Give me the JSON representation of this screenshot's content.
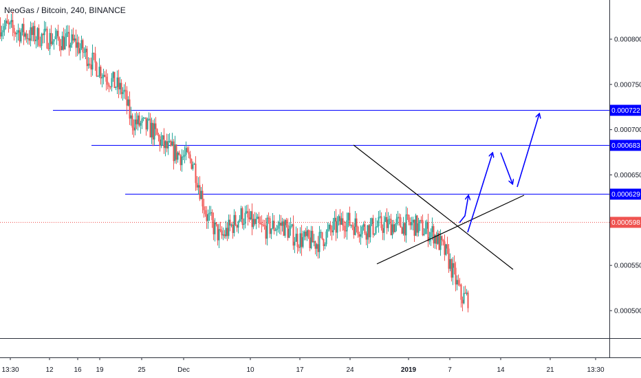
{
  "title": "NeoGas / Bitcoin, 240, BINANCE",
  "colors": {
    "up": "#26a69a",
    "down": "#ef5350",
    "level_line": "#0000ff",
    "tag_bg": "#0000ff",
    "current_price": "#ef5350",
    "trendline": "#000000",
    "arrow": "#0000ff"
  },
  "chart_data": {
    "type": "candlestick",
    "ylim": [
      0.00047,
      0.00083
    ],
    "y_ticks": [
      "0.000800",
      "0.000750",
      "0.000700",
      "0.000650",
      "0.000600",
      "0.000550",
      "0.000500"
    ],
    "x_ticks": [
      "13:30",
      "12",
      "16",
      "19",
      "25",
      "Dec",
      "10",
      "17",
      "24",
      "2019",
      "7",
      "14",
      "21",
      "13:30"
    ],
    "levels": [
      {
        "label": "0.000722",
        "value": 0.000722
      },
      {
        "label": "0.000683",
        "value": 0.000683
      },
      {
        "label": "0.000629",
        "value": 0.000629
      }
    ],
    "current_price": {
      "label": "0.000598",
      "value": 0.000598
    },
    "candle_count": 340,
    "price_anchors": [
      [
        0,
        0.000815
      ],
      [
        20,
        0.000805
      ],
      [
        40,
        0.0008
      ],
      [
        55,
        0.000795
      ],
      [
        70,
        0.00077
      ],
      [
        90,
        0.00074
      ],
      [
        95,
        0.00071
      ],
      [
        110,
        0.0007
      ],
      [
        120,
        0.00068
      ],
      [
        140,
        0.000665
      ],
      [
        150,
        0.000605
      ],
      [
        160,
        0.00058
      ],
      [
        175,
        0.000605
      ],
      [
        190,
        0.00059
      ],
      [
        205,
        0.000595
      ],
      [
        215,
        0.00058
      ],
      [
        230,
        0.000575
      ],
      [
        250,
        0.0006
      ],
      [
        265,
        0.00059
      ],
      [
        280,
        0.000595
      ],
      [
        300,
        0.000595
      ],
      [
        315,
        0.000585
      ],
      [
        325,
        0.00056
      ],
      [
        335,
        0.000515
      ],
      [
        355,
        0.000512
      ],
      [
        375,
        0.000505
      ],
      [
        395,
        0.000502
      ],
      [
        415,
        0.000505
      ],
      [
        440,
        0.00052
      ],
      [
        460,
        0.000525
      ],
      [
        475,
        0.000512
      ],
      [
        495,
        0.00052
      ],
      [
        505,
        0.00056
      ],
      [
        512,
        0.00062
      ],
      [
        516,
        0.000685
      ],
      [
        522,
        0.00064
      ],
      [
        535,
        0.000615
      ],
      [
        548,
        0.00058
      ],
      [
        560,
        0.000595
      ],
      [
        580,
        0.000585
      ],
      [
        595,
        0.00059
      ],
      [
        605,
        0.00062
      ],
      [
        620,
        0.0006
      ],
      [
        640,
        0.0006
      ],
      [
        655,
        0.000625
      ],
      [
        665,
        0.000605
      ],
      [
        672,
        0.000598
      ]
    ]
  }
}
